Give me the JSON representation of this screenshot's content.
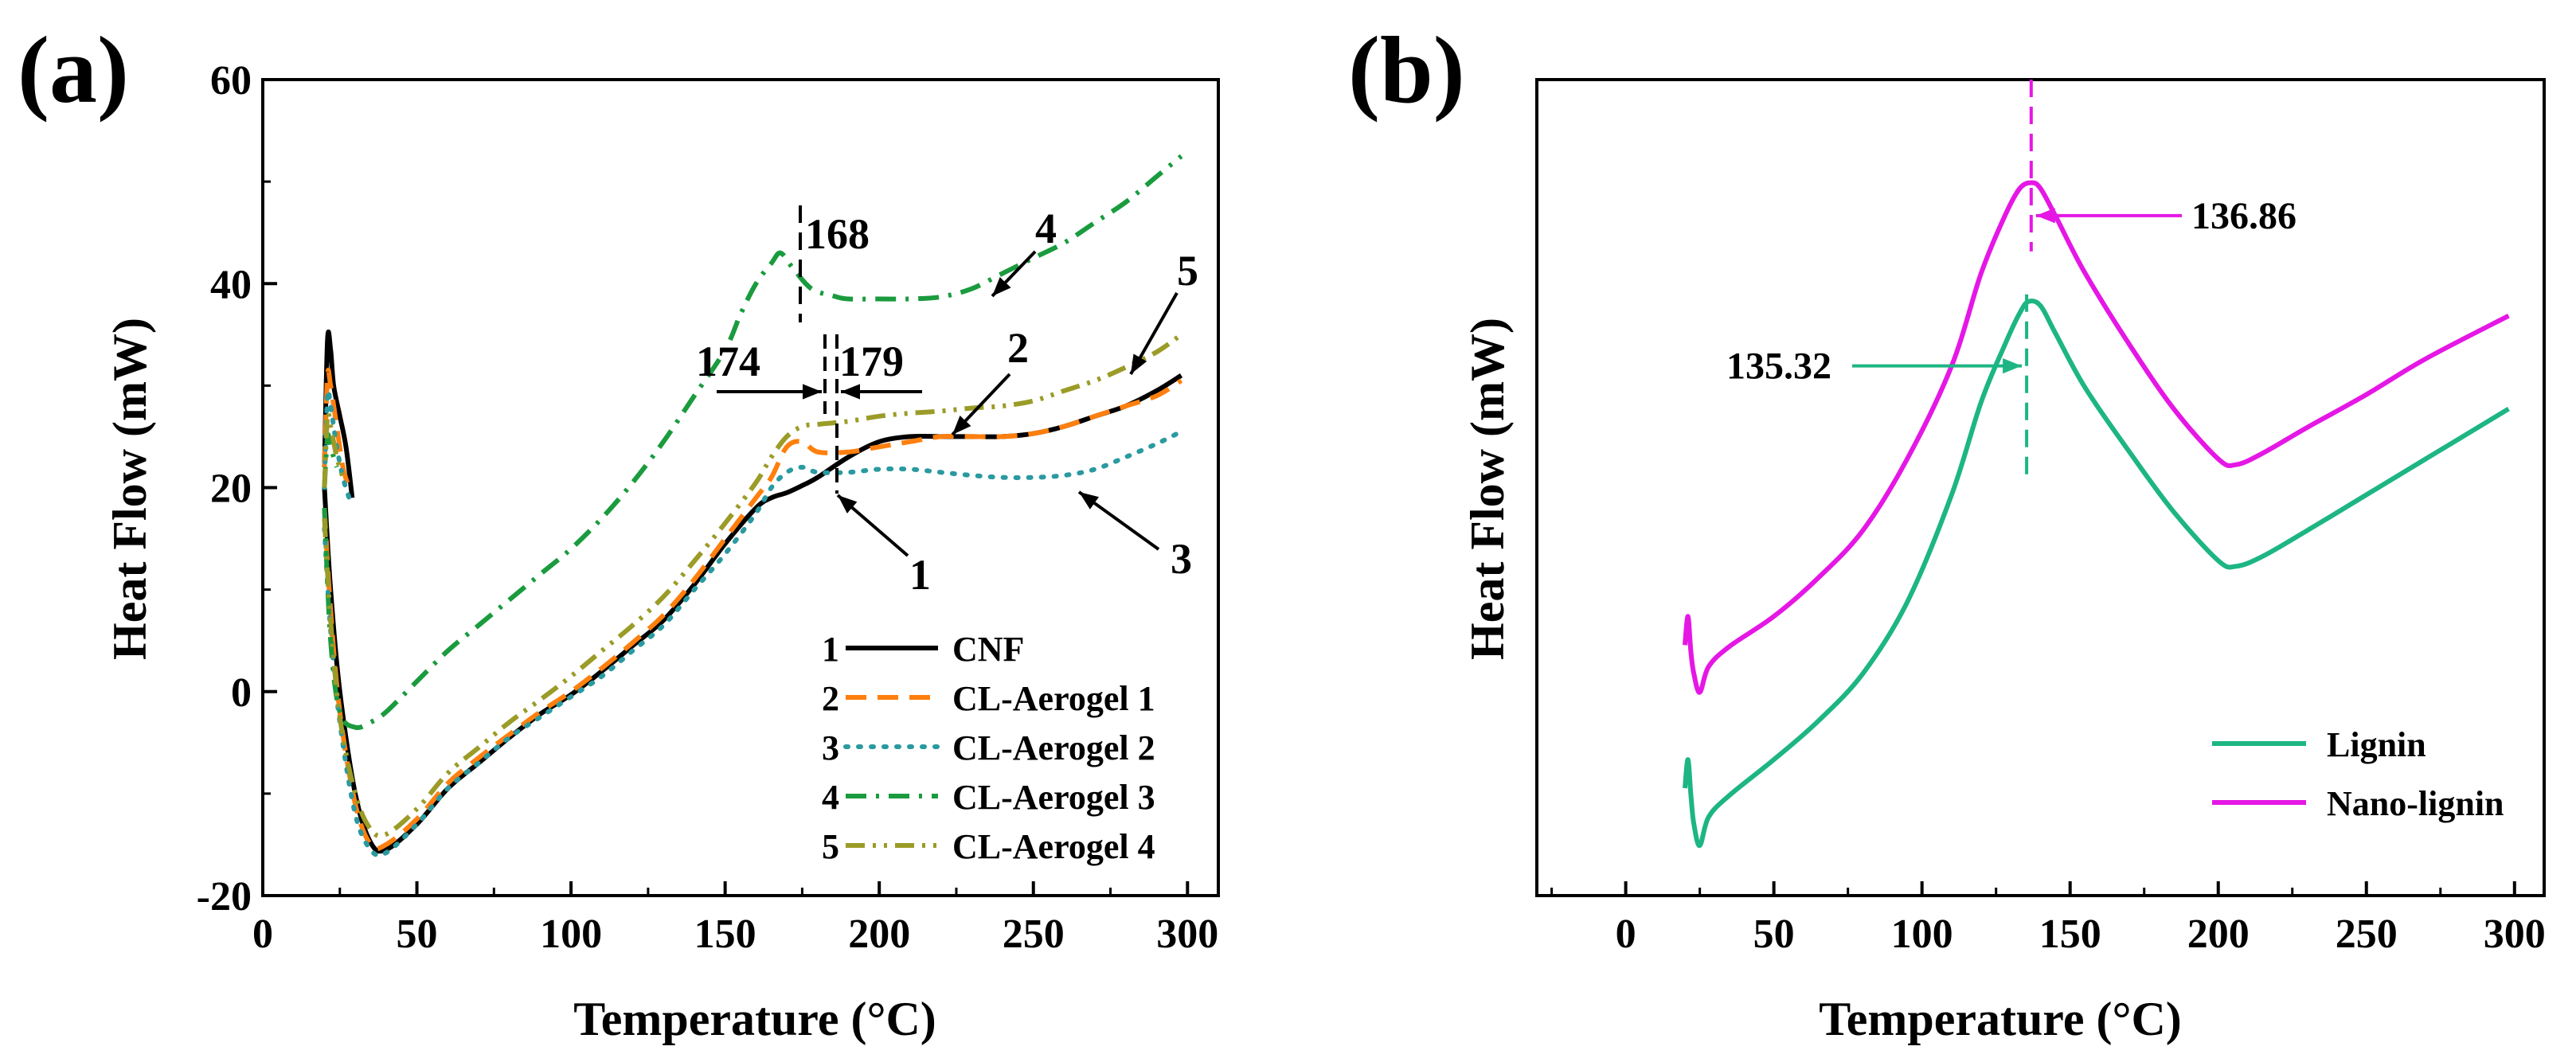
{
  "chart_data": [
    {
      "panel_label": "(a)",
      "type": "line",
      "title": "",
      "xlabel": "Temperature (°C)",
      "ylabel": "Heat Flow (mW)",
      "xlim": [
        0,
        310
      ],
      "ylim": [
        -20,
        60
      ],
      "x_ticks": [
        0,
        50,
        100,
        150,
        200,
        250,
        300
      ],
      "x_tick_labels": [
        "0",
        "50",
        "100",
        "150",
        "200",
        "250",
        "300"
      ],
      "y_ticks": [
        -20,
        0,
        20,
        40,
        60
      ],
      "y_tick_labels": [
        "-20",
        "0",
        "20",
        "40",
        "60"
      ],
      "legend_position": "bottom-right",
      "series": [
        {
          "num": "1",
          "name": "CNF",
          "color": "#000000",
          "dash": "solid",
          "x": [
            20,
            22,
            25,
            30,
            35,
            40,
            50,
            60,
            70,
            80,
            90,
            100,
            110,
            120,
            130,
            140,
            150,
            160,
            165,
            170,
            175,
            180,
            190,
            200,
            210,
            220,
            230,
            240,
            250,
            260,
            270,
            280,
            290,
            298
          ],
          "y": [
            20,
            10,
            0,
            -10,
            -14.8,
            -15.5,
            -13,
            -9.5,
            -7,
            -4.5,
            -2.2,
            -0.3,
            2,
            4.5,
            7,
            10.5,
            14.5,
            18,
            19,
            19.5,
            20.2,
            21,
            23,
            24.5,
            25,
            25,
            25,
            25,
            25.3,
            26,
            27,
            28,
            29.5,
            31
          ],
          "spike_x": [
            20,
            21,
            22,
            23,
            25,
            27,
            29
          ],
          "spike_y": [
            22,
            34.5,
            33.5,
            30,
            27,
            24,
            19
          ]
        },
        {
          "num": "2",
          "name": "CL-Aerogel 1",
          "color": "#ff7f0e",
          "dash": "dashed",
          "x": [
            20,
            22,
            25,
            30,
            35,
            40,
            50,
            60,
            70,
            80,
            90,
            100,
            110,
            120,
            130,
            140,
            150,
            160,
            165,
            170,
            175,
            180,
            190,
            200,
            210,
            220,
            230,
            240,
            250,
            260,
            270,
            280,
            290,
            298
          ],
          "y": [
            18,
            8,
            -2,
            -11,
            -15,
            -15,
            -12.5,
            -9,
            -6.5,
            -4.2,
            -2,
            0,
            2.3,
            4.8,
            7.5,
            11,
            15,
            19,
            21,
            24,
            24.5,
            23.5,
            23.5,
            24,
            24.5,
            25,
            25,
            25,
            25.3,
            26,
            27,
            28,
            29,
            30.5
          ],
          "spike_x": [
            20,
            21,
            22,
            24,
            26,
            28
          ],
          "spike_y": [
            22,
            31,
            30,
            26,
            22,
            20
          ]
        },
        {
          "num": "3",
          "name": "CL-Aerogel 2",
          "color": "#2a9aa0",
          "dash": "dotted",
          "x": [
            20,
            22,
            25,
            30,
            35,
            40,
            50,
            60,
            70,
            80,
            90,
            100,
            110,
            120,
            130,
            140,
            150,
            160,
            165,
            170,
            175,
            180,
            190,
            200,
            210,
            220,
            230,
            240,
            250,
            260,
            270,
            280,
            290,
            298
          ],
          "y": [
            16,
            6,
            -3,
            -12,
            -15.5,
            -15.8,
            -13,
            -9.5,
            -7,
            -4.5,
            -2.5,
            -0.5,
            1.5,
            4,
            6.5,
            10,
            13.5,
            17.5,
            20,
            21.5,
            22,
            21.5,
            21.5,
            21.8,
            21.8,
            21.5,
            21.2,
            21,
            21,
            21.2,
            21.8,
            23,
            24.3,
            25.5
          ],
          "spike_x": [
            20,
            21,
            22,
            24,
            26,
            28
          ],
          "spike_y": [
            20,
            29,
            28,
            24,
            21,
            19
          ]
        },
        {
          "num": "4",
          "name": "CL-Aerogel 3",
          "color": "#1a9b3e",
          "dash": "dashdot",
          "x": [
            20,
            22,
            25,
            30,
            35,
            40,
            50,
            60,
            70,
            80,
            90,
            100,
            110,
            120,
            130,
            140,
            150,
            155,
            160,
            165,
            168,
            172,
            178,
            185,
            190,
            200,
            210,
            220,
            230,
            240,
            250,
            260,
            270,
            280,
            290,
            298
          ],
          "y": [
            18,
            5,
            -2,
            -3.5,
            -3,
            -2,
            1,
            4,
            6.5,
            9,
            11.5,
            14,
            17,
            20.5,
            24.5,
            29,
            33.5,
            37,
            40,
            42,
            43,
            41.5,
            39.5,
            38.8,
            38.5,
            38.5,
            38.5,
            38.7,
            39.5,
            41,
            42.5,
            44,
            46,
            48,
            50.5,
            52.5
          ],
          "spike_x": [
            20,
            21,
            22,
            24
          ],
          "spike_y": [
            20,
            25,
            24,
            22
          ]
        },
        {
          "num": "5",
          "name": "CL-Aerogel 4",
          "color": "#9b9b28",
          "dash": "dashdotdot",
          "x": [
            20,
            22,
            25,
            30,
            35,
            40,
            50,
            60,
            70,
            80,
            90,
            100,
            110,
            120,
            130,
            140,
            150,
            160,
            165,
            170,
            175,
            180,
            190,
            200,
            210,
            220,
            230,
            240,
            250,
            260,
            270,
            280,
            290,
            298
          ],
          "y": [
            17,
            7,
            -2.5,
            -10,
            -13.5,
            -14,
            -11.5,
            -8,
            -5.5,
            -3,
            -0.8,
            1.5,
            4,
            6.5,
            9.3,
            12.8,
            16.5,
            20.5,
            23,
            25,
            26,
            26.2,
            26.5,
            27,
            27.3,
            27.5,
            27.8,
            28,
            28.5,
            29.5,
            30.5,
            31.8,
            33.3,
            35
          ],
          "spike_x": [
            20,
            21,
            22,
            24,
            26
          ],
          "spike_y": [
            20,
            27,
            26,
            23,
            21
          ]
        }
      ],
      "annotations": {
        "peak_168": "168",
        "peak_174": "174",
        "peak_179": "179",
        "curve_labels": [
          "1",
          "2",
          "3",
          "4",
          "5"
        ]
      }
    },
    {
      "panel_label": "(b)",
      "type": "line",
      "title": "",
      "xlabel": "Temperature (°C)",
      "ylabel": "Heat Flow (mW)",
      "xlim": [
        -30,
        310
      ],
      "x_ticks": [
        0,
        50,
        100,
        150,
        200,
        250,
        300
      ],
      "x_tick_labels": [
        "0",
        "50",
        "100",
        "150",
        "200",
        "250",
        "300"
      ],
      "y_ticks": [],
      "legend_position": "bottom-right",
      "series": [
        {
          "name": "Lignin",
          "color": "#1db584",
          "dash": "solid",
          "x": [
            20,
            21,
            22,
            23,
            25,
            28,
            35,
            50,
            65,
            80,
            95,
            110,
            120,
            128,
            133,
            136,
            140,
            145,
            155,
            170,
            185,
            200,
            206,
            215,
            230,
            250,
            270,
            298
          ],
          "y": [
            -13.5,
            -11.5,
            -14,
            -16,
            -17.5,
            -15.5,
            -14,
            -11.5,
            -8.8,
            -5.5,
            -0.5,
            7,
            13.5,
            17.5,
            19.7,
            20.5,
            20.2,
            18.3,
            14.5,
            10,
            5.8,
            2.4,
            2,
            2.7,
            4.5,
            7,
            9.5,
            13
          ],
          "peak_x": 135.32
        },
        {
          "name": "Nano-lignin",
          "color": "#e517e5",
          "dash": "solid",
          "x": [
            20,
            21,
            22,
            23,
            25,
            28,
            35,
            50,
            65,
            80,
            95,
            110,
            120,
            128,
            133,
            137,
            140,
            145,
            155,
            170,
            185,
            200,
            206,
            215,
            230,
            250,
            270,
            298
          ],
          "y": [
            -3.5,
            -1.5,
            -4,
            -5.5,
            -6.8,
            -5,
            -3.6,
            -1.5,
            1.2,
            4.5,
            9.5,
            16,
            22.5,
            26.5,
            28.4,
            28.8,
            28.4,
            26.5,
            22.5,
            17.5,
            13,
            9.5,
            9.1,
            9.9,
            11.7,
            14,
            16.5,
            19.5
          ],
          "peak_x": 136.86
        }
      ],
      "annotations": {
        "peak_lignin": "135.32",
        "peak_nano": "136.86"
      }
    }
  ]
}
